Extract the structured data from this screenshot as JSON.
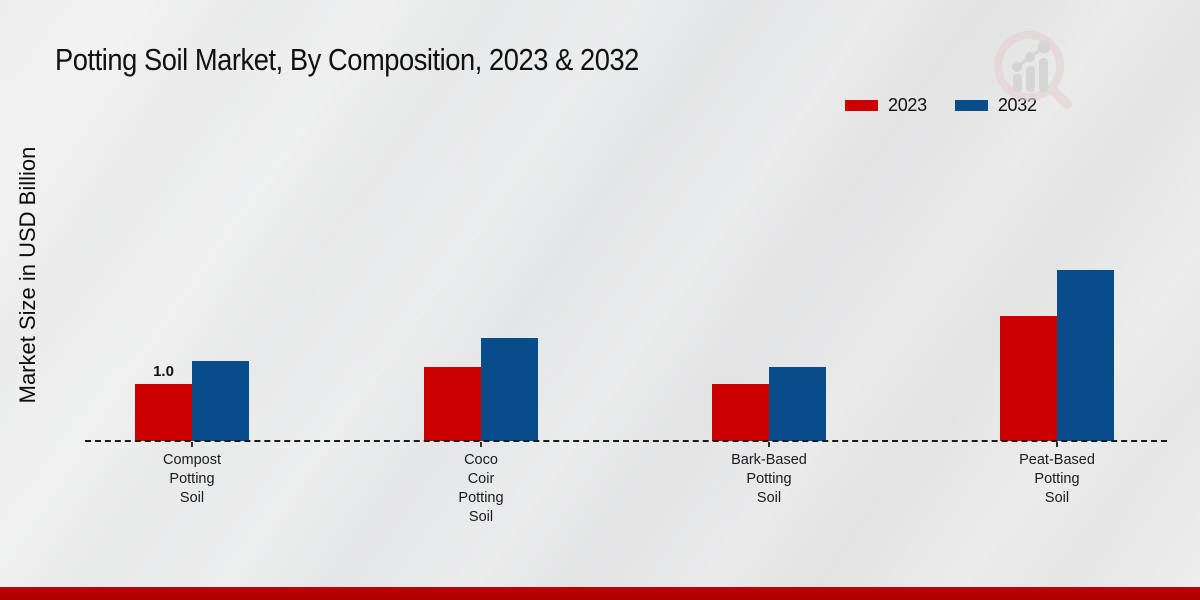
{
  "page": {
    "background_color": "#e9e9e9",
    "footer_bar_color": "#b20000"
  },
  "icons": {
    "watermark": "magnifier-bar-chart-logo"
  },
  "chart_data": {
    "type": "bar",
    "title": "Potting Soil Market, By Composition, 2023 & 2032",
    "xlabel": "",
    "ylabel": "Market Size in USD Billion",
    "categories": [
      "Compost\nPotting\nSoil",
      "Coco\nCoir\nPotting\nSoil",
      "Bark-Based\nPotting\nSoil",
      "Peat-Based\nPotting\nSoil"
    ],
    "series": [
      {
        "name": "2023",
        "color": "#cc0001",
        "values": [
          1.0,
          1.3,
          1.0,
          2.2
        ]
      },
      {
        "name": "2032",
        "color": "#084d8a",
        "values": [
          1.4,
          1.8,
          1.3,
          3.0
        ]
      }
    ],
    "bar_labels": [
      {
        "series_index": 0,
        "category_index": 0,
        "text": "1.0"
      }
    ],
    "ylim": [
      0,
      3.5
    ],
    "y_axis_ticks_visible": false,
    "grid": false,
    "baseline_style": "dashed",
    "legend_position": "top-right"
  }
}
